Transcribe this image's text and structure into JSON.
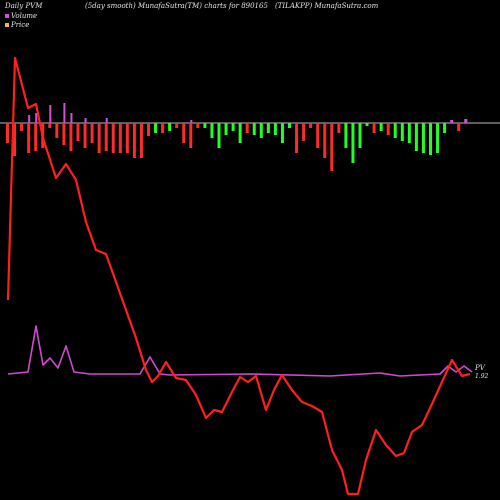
{
  "header": {
    "left": "Daily PVM",
    "middle": "(5day smooth) MunafaSutra(TM) charts for 890165",
    "right": "(TILAKPP) MunafaSutra.com"
  },
  "legend": {
    "volume_label": "Volume",
    "price_label": "Price",
    "volume_color": "#d44fd4",
    "price_color": "#f0b070"
  },
  "colors": {
    "background": "#000000",
    "price_line": "#ff1f1f",
    "pvm_line": "#d04ad0",
    "bar_down": "#ff2a2a",
    "bar_up": "#22ff22",
    "baseline": "#bdbdbd"
  },
  "chart_data": {
    "type": "bar",
    "title": "Daily PVM",
    "end_labels": {
      "price": "1.92",
      "pvm": "PV"
    },
    "bars": [
      {
        "v": -20,
        "c": "down"
      },
      {
        "v": -33,
        "c": "down"
      },
      {
        "v": -8,
        "c": "down"
      },
      {
        "v": -30,
        "c": "down"
      },
      {
        "v": -28,
        "c": "down"
      },
      {
        "v": -25,
        "c": "down"
      },
      {
        "v": -5,
        "c": "down"
      },
      {
        "v": -15,
        "c": "down"
      },
      {
        "v": -22,
        "c": "down"
      },
      {
        "v": -28,
        "c": "down"
      },
      {
        "v": -18,
        "c": "down"
      },
      {
        "v": -25,
        "c": "down"
      },
      {
        "v": -20,
        "c": "down"
      },
      {
        "v": -30,
        "c": "down"
      },
      {
        "v": -28,
        "c": "down"
      },
      {
        "v": -30,
        "c": "down"
      },
      {
        "v": -30,
        "c": "down"
      },
      {
        "v": -30,
        "c": "down"
      },
      {
        "v": -35,
        "c": "down"
      },
      {
        "v": -35,
        "c": "down"
      },
      {
        "v": -13,
        "c": "down"
      },
      {
        "v": -10,
        "c": "up"
      },
      {
        "v": -10,
        "c": "down"
      },
      {
        "v": -8,
        "c": "up"
      },
      {
        "v": -5,
        "c": "down"
      },
      {
        "v": -20,
        "c": "down"
      },
      {
        "v": -25,
        "c": "down"
      },
      {
        "v": -5,
        "c": "down"
      },
      {
        "v": -5,
        "c": "up"
      },
      {
        "v": -15,
        "c": "up"
      },
      {
        "v": -25,
        "c": "up"
      },
      {
        "v": -12,
        "c": "up"
      },
      {
        "v": -8,
        "c": "up"
      },
      {
        "v": -20,
        "c": "up"
      },
      {
        "v": -10,
        "c": "down"
      },
      {
        "v": -12,
        "c": "up"
      },
      {
        "v": -15,
        "c": "up"
      },
      {
        "v": -10,
        "c": "up"
      },
      {
        "v": -12,
        "c": "up"
      },
      {
        "v": -20,
        "c": "up"
      },
      {
        "v": -5,
        "c": "up"
      },
      {
        "v": -30,
        "c": "down"
      },
      {
        "v": -18,
        "c": "down"
      },
      {
        "v": -5,
        "c": "down"
      },
      {
        "v": -25,
        "c": "down"
      },
      {
        "v": -35,
        "c": "down"
      },
      {
        "v": -48,
        "c": "down"
      },
      {
        "v": -10,
        "c": "down"
      },
      {
        "v": -25,
        "c": "up"
      },
      {
        "v": -40,
        "c": "up"
      },
      {
        "v": -25,
        "c": "up"
      },
      {
        "v": -3,
        "c": "up"
      },
      {
        "v": -10,
        "c": "down"
      },
      {
        "v": -8,
        "c": "up"
      },
      {
        "v": -12,
        "c": "down"
      },
      {
        "v": -15,
        "c": "up"
      },
      {
        "v": -18,
        "c": "up"
      },
      {
        "v": -20,
        "c": "up"
      },
      {
        "v": -28,
        "c": "up"
      },
      {
        "v": -30,
        "c": "up"
      },
      {
        "v": -32,
        "c": "up"
      },
      {
        "v": -30,
        "c": "up"
      },
      {
        "v": -10,
        "c": "up"
      },
      {
        "v": 3,
        "c": "vol"
      },
      {
        "v": -8,
        "c": "down"
      },
      {
        "v": 4,
        "c": "vol"
      }
    ],
    "volume_ticks": [
      {
        "i": 3,
        "v": 8
      },
      {
        "i": 4,
        "v": 10
      },
      {
        "i": 6,
        "v": 18
      },
      {
        "i": 8,
        "v": 20
      },
      {
        "i": 9,
        "v": 10
      },
      {
        "i": 11,
        "v": 5
      },
      {
        "i": 14,
        "v": 5
      },
      {
        "i": 26,
        "v": 3
      }
    ],
    "price": [
      {
        "x": 8,
        "y": 300
      },
      {
        "x": 15,
        "y": 58
      },
      {
        "x": 28,
        "y": 108
      },
      {
        "x": 36,
        "y": 104
      },
      {
        "x": 43,
        "y": 138
      },
      {
        "x": 56,
        "y": 178
      },
      {
        "x": 66,
        "y": 164
      },
      {
        "x": 76,
        "y": 180
      },
      {
        "x": 86,
        "y": 222
      },
      {
        "x": 96,
        "y": 250
      },
      {
        "x": 106,
        "y": 254
      },
      {
        "x": 116,
        "y": 282
      },
      {
        "x": 126,
        "y": 310
      },
      {
        "x": 136,
        "y": 338
      },
      {
        "x": 146,
        "y": 370
      },
      {
        "x": 152,
        "y": 382
      },
      {
        "x": 158,
        "y": 376
      },
      {
        "x": 166,
        "y": 362
      },
      {
        "x": 176,
        "y": 378
      },
      {
        "x": 186,
        "y": 380
      },
      {
        "x": 196,
        "y": 395
      },
      {
        "x": 206,
        "y": 418
      },
      {
        "x": 214,
        "y": 410
      },
      {
        "x": 222,
        "y": 412
      },
      {
        "x": 232,
        "y": 392
      },
      {
        "x": 240,
        "y": 377
      },
      {
        "x": 248,
        "y": 382
      },
      {
        "x": 256,
        "y": 376
      },
      {
        "x": 266,
        "y": 410
      },
      {
        "x": 274,
        "y": 390
      },
      {
        "x": 282,
        "y": 375
      },
      {
        "x": 292,
        "y": 390
      },
      {
        "x": 302,
        "y": 402
      },
      {
        "x": 312,
        "y": 406
      },
      {
        "x": 322,
        "y": 412
      },
      {
        "x": 332,
        "y": 450
      },
      {
        "x": 342,
        "y": 470
      },
      {
        "x": 348,
        "y": 494
      },
      {
        "x": 358,
        "y": 494
      },
      {
        "x": 366,
        "y": 460
      },
      {
        "x": 376,
        "y": 430
      },
      {
        "x": 386,
        "y": 445
      },
      {
        "x": 396,
        "y": 456
      },
      {
        "x": 404,
        "y": 453
      },
      {
        "x": 412,
        "y": 432
      },
      {
        "x": 422,
        "y": 425
      },
      {
        "x": 432,
        "y": 404
      },
      {
        "x": 442,
        "y": 382
      },
      {
        "x": 452,
        "y": 360
      },
      {
        "x": 462,
        "y": 376
      },
      {
        "x": 470,
        "y": 374
      }
    ],
    "pvm": [
      {
        "x": 8,
        "y": 374
      },
      {
        "x": 28,
        "y": 372
      },
      {
        "x": 36,
        "y": 326
      },
      {
        "x": 43,
        "y": 365
      },
      {
        "x": 50,
        "y": 358
      },
      {
        "x": 58,
        "y": 368
      },
      {
        "x": 66,
        "y": 346
      },
      {
        "x": 74,
        "y": 372
      },
      {
        "x": 90,
        "y": 374
      },
      {
        "x": 140,
        "y": 374
      },
      {
        "x": 150,
        "y": 357
      },
      {
        "x": 160,
        "y": 374
      },
      {
        "x": 170,
        "y": 375
      },
      {
        "x": 250,
        "y": 374
      },
      {
        "x": 330,
        "y": 376
      },
      {
        "x": 380,
        "y": 373
      },
      {
        "x": 400,
        "y": 376
      },
      {
        "x": 440,
        "y": 374
      },
      {
        "x": 448,
        "y": 366
      },
      {
        "x": 456,
        "y": 372
      },
      {
        "x": 464,
        "y": 366
      },
      {
        "x": 472,
        "y": 372
      }
    ],
    "ylim": [
      0,
      500
    ]
  }
}
